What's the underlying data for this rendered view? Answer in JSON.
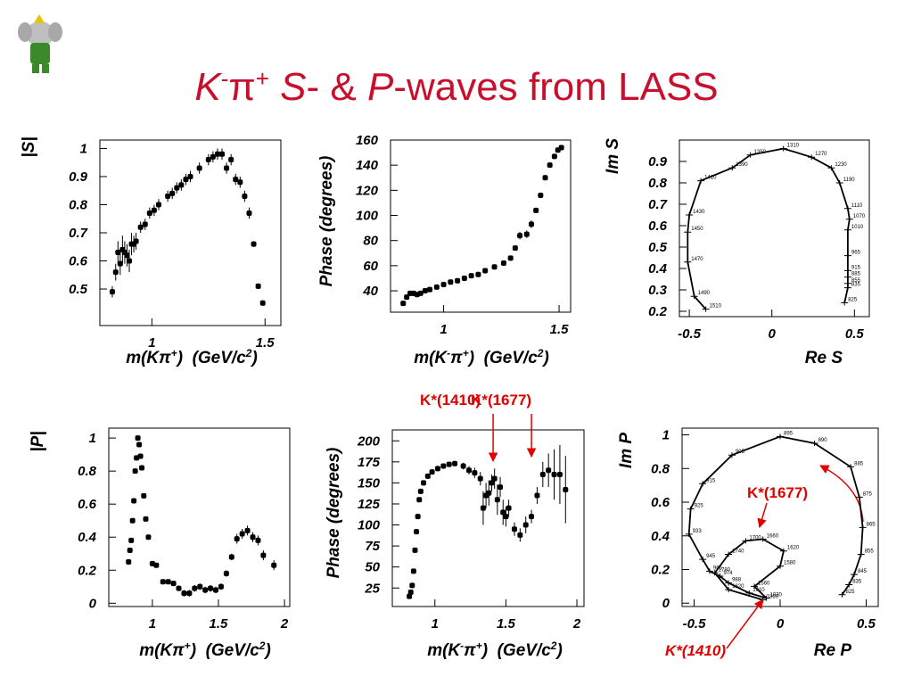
{
  "slide": {
    "title": [
      "K",
      "-",
      "π",
      "+",
      " S",
      "- & ",
      "P",
      "-waves from LASS"
    ]
  },
  "chart_data": [
    {
      "type": "scatter",
      "ylabel": "|S|",
      "xlabel": [
        "m(Kπ",
        "+",
        ")  (GeV/c",
        "2",
        ")"
      ],
      "xlim": [
        0.77,
        1.57
      ],
      "ylim": [
        0.37,
        1.03
      ],
      "xticks": [
        1,
        1.5
      ],
      "yticks": [
        0.5,
        0.6,
        0.7,
        0.8,
        0.9,
        1
      ],
      "x": [
        0.825,
        0.84,
        0.85,
        0.86,
        0.87,
        0.88,
        0.89,
        0.9,
        0.91,
        0.92,
        0.93,
        0.95,
        0.97,
        0.99,
        1.01,
        1.03,
        1.07,
        1.09,
        1.11,
        1.13,
        1.15,
        1.17,
        1.21,
        1.25,
        1.27,
        1.29,
        1.31,
        1.33,
        1.35,
        1.37,
        1.39,
        1.41,
        1.43,
        1.45,
        1.47,
        1.49
      ],
      "y": [
        0.49,
        0.56,
        0.63,
        0.59,
        0.64,
        0.63,
        0.62,
        0.6,
        0.66,
        0.66,
        0.67,
        0.72,
        0.73,
        0.77,
        0.78,
        0.8,
        0.83,
        0.84,
        0.86,
        0.87,
        0.89,
        0.9,
        0.93,
        0.96,
        0.97,
        0.98,
        0.98,
        0.93,
        0.96,
        0.89,
        0.88,
        0.83,
        0.77,
        0.66,
        0.51,
        0.45
      ],
      "errors": [
        0.02,
        0.03,
        0.04,
        0.04,
        0.05,
        0.04,
        0.04,
        0.04,
        0.04,
        0.03,
        0.03,
        0.02,
        0.02,
        0.02,
        0.02,
        0.02,
        0.02,
        0.02,
        0.02,
        0.02,
        0.02,
        0.02,
        0.02,
        0.02,
        0.02,
        0.02,
        0.02,
        0.02,
        0.02,
        0.02,
        0.02,
        0.02,
        0.02,
        0.01,
        0.01,
        0.01
      ]
    },
    {
      "type": "scatter",
      "ylabel": "Phase (degrees)",
      "xlabel": [
        "m(K",
        "-",
        "π",
        "+",
        ")  (GeV/c",
        "2",
        ")"
      ],
      "xlim": [
        0.77,
        1.55
      ],
      "ylim": [
        23,
        160
      ],
      "xticks": [
        1,
        1.5
      ],
      "yticks": [
        40,
        60,
        80,
        100,
        120,
        140,
        160
      ],
      "x": [
        0.825,
        0.84,
        0.855,
        0.87,
        0.885,
        0.9,
        0.92,
        0.94,
        0.97,
        1.0,
        1.03,
        1.06,
        1.09,
        1.12,
        1.15,
        1.18,
        1.22,
        1.26,
        1.29,
        1.31,
        1.33,
        1.36,
        1.38,
        1.4,
        1.42,
        1.44,
        1.46,
        1.48,
        1.495,
        1.51
      ],
      "y": [
        30,
        35,
        38,
        38,
        37,
        38,
        40,
        41,
        43,
        45,
        47,
        48,
        50,
        52,
        53,
        56,
        59,
        62,
        66,
        74,
        84,
        85,
        93,
        104,
        116,
        130,
        140,
        147,
        152,
        154
      ],
      "errors": [
        2,
        2,
        2,
        2,
        2,
        2,
        2,
        2,
        2,
        2,
        2,
        2,
        2,
        2,
        2,
        2,
        2,
        2,
        2,
        2,
        3,
        3,
        3,
        2,
        2,
        2,
        2,
        2,
        2,
        2
      ]
    },
    {
      "type": "argand",
      "ylabel": "Im S",
      "xlabel": "Re S",
      "xlim": [
        -0.56,
        0.59
      ],
      "ylim": [
        0.175,
        1.0
      ],
      "xticks": [
        -0.5,
        0,
        0.5
      ],
      "yticks": [
        0.2,
        0.3,
        0.4,
        0.5,
        0.6,
        0.7,
        0.8,
        0.9
      ],
      "x": [
        0.44,
        0.46,
        0.46,
        0.46,
        0.46,
        0.46,
        0.46,
        0.47,
        0.46,
        0.41,
        0.36,
        0.24,
        0.07,
        -0.13,
        -0.24,
        -0.43,
        -0.5,
        -0.51,
        -0.51,
        -0.47,
        -0.4
      ],
      "y": [
        0.24,
        0.31,
        0.33,
        0.36,
        0.39,
        0.46,
        0.58,
        0.63,
        0.68,
        0.8,
        0.87,
        0.92,
        0.96,
        0.93,
        0.87,
        0.81,
        0.65,
        0.57,
        0.43,
        0.27,
        0.21
      ],
      "point_labels": [
        "825",
        "835",
        "855",
        "885",
        "915",
        "965",
        "1010",
        "1070",
        "1110",
        "1190",
        "1230",
        "1270",
        "1310",
        "1350",
        "1390",
        "1410",
        "1430",
        "1450",
        "1470",
        "1490",
        "1510"
      ]
    },
    {
      "type": "scatter",
      "ylabel": "|P|",
      "xlabel": [
        "m(Kπ",
        "+",
        ")  (GeV/c",
        "2",
        ")"
      ],
      "xlim": [
        0.67,
        2.04
      ],
      "ylim": [
        -0.02,
        1.06
      ],
      "xticks": [
        1,
        1.5,
        2
      ],
      "yticks": [
        0,
        0.2,
        0.4,
        0.6,
        0.8,
        1
      ],
      "x": [
        0.82,
        0.83,
        0.84,
        0.85,
        0.86,
        0.87,
        0.88,
        0.89,
        0.9,
        0.91,
        0.92,
        0.935,
        0.95,
        0.97,
        1.0,
        1.03,
        1.08,
        1.12,
        1.16,
        1.2,
        1.24,
        1.28,
        1.32,
        1.36,
        1.4,
        1.44,
        1.48,
        1.52,
        1.56,
        1.6,
        1.64,
        1.68,
        1.72,
        1.76,
        1.8,
        1.84,
        1.92
      ],
      "y": [
        0.25,
        0.32,
        0.38,
        0.5,
        0.62,
        0.8,
        0.88,
        1.0,
        0.96,
        0.89,
        0.82,
        0.65,
        0.51,
        0.4,
        0.24,
        0.23,
        0.13,
        0.13,
        0.12,
        0.09,
        0.06,
        0.06,
        0.09,
        0.1,
        0.08,
        0.09,
        0.08,
        0.1,
        0.18,
        0.28,
        0.39,
        0.42,
        0.44,
        0.4,
        0.38,
        0.29,
        0.23
      ],
      "errors": [
        0.01,
        0.01,
        0.01,
        0.01,
        0.01,
        0.01,
        0.01,
        0.01,
        0.01,
        0.01,
        0.01,
        0.01,
        0.01,
        0.01,
        0.01,
        0.01,
        0.01,
        0.01,
        0.01,
        0.01,
        0.02,
        0.02,
        0.02,
        0.02,
        0.02,
        0.02,
        0.02,
        0.02,
        0.02,
        0.02,
        0.03,
        0.03,
        0.03,
        0.03,
        0.03,
        0.03,
        0.03
      ]
    },
    {
      "type": "scatter",
      "ylabel": "Phase (degrees)",
      "xlabel": [
        "m(K",
        "-",
        "π",
        "+",
        ")  (GeV/c",
        "2",
        ")"
      ],
      "xlim": [
        0.7,
        2.05
      ],
      "ylim": [
        3,
        213
      ],
      "xticks": [
        1,
        1.5,
        2
      ],
      "yticks": [
        25,
        50,
        75,
        100,
        125,
        150,
        175,
        200
      ],
      "x": [
        0.82,
        0.83,
        0.84,
        0.85,
        0.86,
        0.87,
        0.88,
        0.89,
        0.9,
        0.92,
        0.95,
        0.98,
        1.02,
        1.06,
        1.1,
        1.14,
        1.2,
        1.24,
        1.28,
        1.32,
        1.34,
        1.36,
        1.38,
        1.4,
        1.42,
        1.44,
        1.46,
        1.48,
        1.5,
        1.52,
        1.56,
        1.6,
        1.64,
        1.68,
        1.72,
        1.76,
        1.8,
        1.84,
        1.88,
        1.92
      ],
      "y": [
        15,
        20,
        28,
        45,
        70,
        92,
        110,
        130,
        140,
        150,
        158,
        163,
        167,
        170,
        172,
        173,
        170,
        165,
        162,
        155,
        120,
        135,
        138,
        150,
        155,
        130,
        145,
        115,
        110,
        120,
        95,
        88,
        100,
        110,
        135,
        160,
        165,
        160,
        160,
        142
      ],
      "errors": [
        2,
        2,
        2,
        3,
        3,
        3,
        3,
        3,
        3,
        3,
        3,
        3,
        3,
        3,
        3,
        3,
        4,
        5,
        6,
        8,
        20,
        15,
        15,
        10,
        12,
        18,
        12,
        15,
        12,
        10,
        8,
        8,
        10,
        8,
        10,
        15,
        20,
        30,
        35,
        40
      ],
      "annotations": [
        {
          "text": "K*(1410)",
          "x": 1.41
        },
        {
          "text": "K*(1677)",
          "x": 1.68
        }
      ]
    },
    {
      "type": "argand",
      "ylabel": "Im P",
      "xlabel": "Re P",
      "xlim": [
        -0.57,
        0.57
      ],
      "ylim": [
        -0.02,
        1.04
      ],
      "xticks": [
        -0.5,
        0,
        0.5
      ],
      "yticks": [
        0,
        0.2,
        0.4,
        0.6,
        0.8,
        1
      ],
      "x": [
        0.36,
        0.4,
        0.43,
        0.47,
        0.48,
        0.46,
        0.41,
        0.2,
        0.0,
        -0.28,
        -0.45,
        -0.52,
        -0.53,
        -0.45,
        -0.41,
        -0.35,
        -0.3,
        -0.18,
        -0.08,
        -0.15,
        0.0,
        0.02,
        -0.1,
        -0.2,
        -0.3,
        -0.38,
        -0.3,
        -0.1
      ],
      "y": [
        0.05,
        0.11,
        0.17,
        0.29,
        0.45,
        0.63,
        0.81,
        0.95,
        0.99,
        0.88,
        0.71,
        0.56,
        0.41,
        0.26,
        0.19,
        0.16,
        0.12,
        0.06,
        0.03,
        0.1,
        0.22,
        0.31,
        0.38,
        0.37,
        0.29,
        0.18,
        0.08,
        0.02
      ],
      "point_labels": [
        "825",
        "835",
        "845",
        "855",
        "865",
        "875",
        "885",
        "890",
        "895",
        "905",
        "915",
        "925",
        "933",
        "945",
        "965",
        "974",
        "988",
        "1010",
        "1030",
        "1560",
        "1580",
        "1620",
        "1660",
        "1700",
        "1740",
        "1780",
        "1820",
        "1860"
      ],
      "annotations": [
        {
          "text": "K*(1677)",
          "x": -0.12,
          "y": 0.43
        },
        {
          "text": "K*(1410)",
          "x": -0.1,
          "y": 0.02
        }
      ]
    }
  ]
}
